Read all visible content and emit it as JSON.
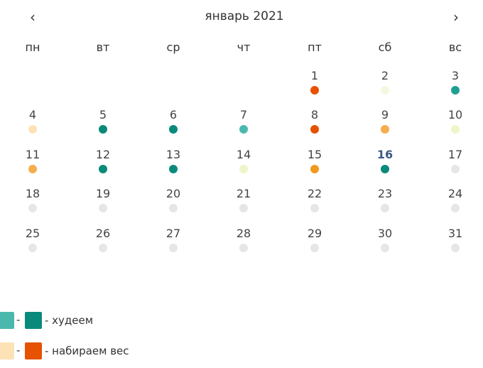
{
  "header": {
    "title": "январь 2021",
    "prev_label": "‹",
    "next_label": "›"
  },
  "weekdays": [
    "пн",
    "вт",
    "ср",
    "чт",
    "пт",
    "сб",
    "вс"
  ],
  "colors": {
    "dark_teal": "#0a8a7a",
    "light_teal": "#4ab8ac",
    "orange_red": "#e65200",
    "orange": "#f29a1f",
    "light_orange": "#f5ae4e",
    "peach": "#fde2b6",
    "pale_yellow": "#eef6c8",
    "pale_yellow2": "#f3f8df",
    "gray": "#e6e6e6"
  },
  "month": {
    "first_weekday_index": 4,
    "today": "16",
    "days": [
      {
        "n": "1",
        "color": "#e65200"
      },
      {
        "n": "2",
        "color": "#f3f8df"
      },
      {
        "n": "3",
        "color": "#1f9f92"
      },
      {
        "n": "4",
        "color": "#fde2b6"
      },
      {
        "n": "5",
        "color": "#0a8a7a"
      },
      {
        "n": "6",
        "color": "#0a8a7a"
      },
      {
        "n": "7",
        "color": "#4ab8ac"
      },
      {
        "n": "8",
        "color": "#e65200"
      },
      {
        "n": "9",
        "color": "#f5ae4e"
      },
      {
        "n": "10",
        "color": "#eef6c8"
      },
      {
        "n": "11",
        "color": "#f5ae4e"
      },
      {
        "n": "12",
        "color": "#0a8a7a"
      },
      {
        "n": "13",
        "color": "#0a8a7a"
      },
      {
        "n": "14",
        "color": "#eef6c8"
      },
      {
        "n": "15",
        "color": "#f29a1f"
      },
      {
        "n": "16",
        "color": "#0a8a7a"
      },
      {
        "n": "17",
        "color": "#e6e6e6"
      },
      {
        "n": "18",
        "color": "#e6e6e6"
      },
      {
        "n": "19",
        "color": "#e6e6e6"
      },
      {
        "n": "20",
        "color": "#e6e6e6"
      },
      {
        "n": "21",
        "color": "#e6e6e6"
      },
      {
        "n": "22",
        "color": "#e6e6e6"
      },
      {
        "n": "23",
        "color": "#e6e6e6"
      },
      {
        "n": "24",
        "color": "#e6e6e6"
      },
      {
        "n": "25",
        "color": "#e6e6e6"
      },
      {
        "n": "26",
        "color": "#e6e6e6"
      },
      {
        "n": "27",
        "color": "#e6e6e6"
      },
      {
        "n": "28",
        "color": "#e6e6e6"
      },
      {
        "n": "29",
        "color": "#e6e6e6"
      },
      {
        "n": "30",
        "color": "#e6e6e6"
      },
      {
        "n": "31",
        "color": "#e6e6e6"
      }
    ]
  },
  "legend": {
    "items": [
      {
        "from_color": "#4ab8ac",
        "to_color": "#0a8a7a",
        "dash": "-",
        "label": "- худеем"
      },
      {
        "from_color": "#fde2b6",
        "to_color": "#e65200",
        "dash": "-",
        "label": "- набираем вес"
      }
    ]
  }
}
